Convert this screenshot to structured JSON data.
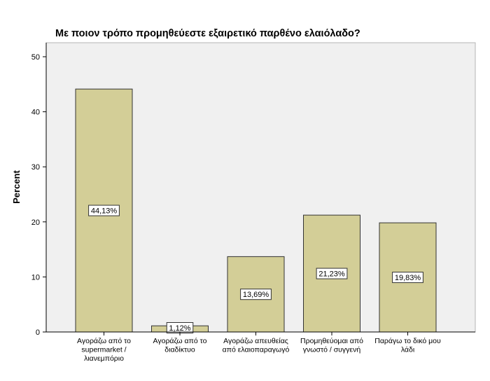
{
  "chart_data": {
    "type": "bar",
    "title": "Με ποιον τρόπο προμηθεύεστε εξαιρετικό παρθένο ελαιόλαδο?",
    "xlabel": "",
    "ylabel": "Percent",
    "ylim": [
      0,
      50
    ],
    "yticks": [
      0,
      10,
      20,
      30,
      40,
      50
    ],
    "grid": false,
    "legend": "none",
    "categories": [
      [
        "Αγοράζω από το",
        "supermarket /",
        "λιανεμπόριο"
      ],
      [
        "Αγοράζω από το",
        "διαδίκτυο"
      ],
      [
        "Αγοράζω απευθείας",
        "από ελαιοπαραγωγό"
      ],
      [
        "Προμηθεύομαι από",
        "γνωστό / συγγενή"
      ],
      [
        "Παράγω το δικό μου",
        "λάδι"
      ]
    ],
    "values": [
      44.13,
      1.12,
      13.69,
      21.23,
      19.83
    ],
    "data_labels": [
      "44,13%",
      "1,12%",
      "13,69%",
      "21,23%",
      "19,83%"
    ],
    "colors": {
      "plot_background": "#f0f0f0",
      "bar_fill": "#d3ce97",
      "bar_stroke": "#333333",
      "axis": "#000000",
      "text": "#000000",
      "label_box_fill": "#ffffff"
    }
  }
}
